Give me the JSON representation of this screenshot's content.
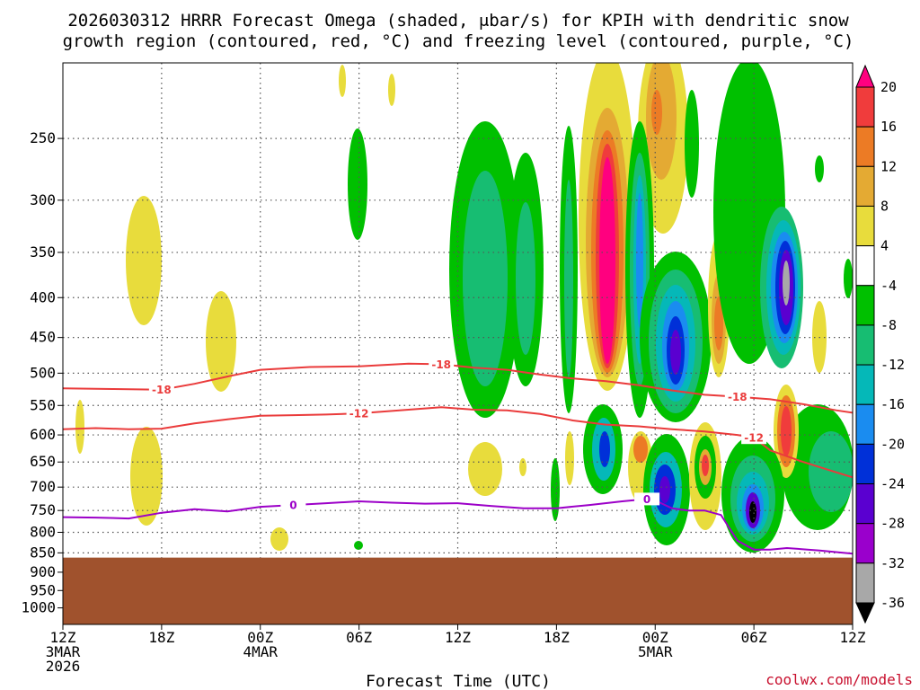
{
  "title_line1": "2026030312 HRRR Forecast Omega (shaded, μbar/s) for KPIH with dendritic snow",
  "title_line2": "growth region (contoured, red, °C) and freezing level (contoured, purple, °C)",
  "credit": "coolwx.com/models",
  "chart_data": {
    "type": "heatmap",
    "title": "2026030312 HRRR Forecast Omega (shaded, μbar/s) for KPIH with dendritic snow growth region (contoured, red, °C) and freezing level (contoured, purple, °C)",
    "xlabel": "Forecast Time (UTC)",
    "ylabel": "",
    "x_range_hours": [
      0,
      48
    ],
    "y_range_hPa": [
      200,
      1050
    ],
    "y_scale": "log-pressure",
    "grid": true,
    "x_ticks": [
      {
        "hour": 0,
        "lines": [
          "12Z",
          "3MAR",
          "2026"
        ]
      },
      {
        "hour": 6,
        "lines": [
          "18Z"
        ]
      },
      {
        "hour": 12,
        "lines": [
          "00Z",
          "4MAR"
        ]
      },
      {
        "hour": 18,
        "lines": [
          "06Z"
        ]
      },
      {
        "hour": 24,
        "lines": [
          "12Z"
        ]
      },
      {
        "hour": 30,
        "lines": [
          "18Z"
        ]
      },
      {
        "hour": 36,
        "lines": [
          "00Z",
          "5MAR"
        ]
      },
      {
        "hour": 42,
        "lines": [
          "06Z"
        ]
      },
      {
        "hour": 48,
        "lines": [
          "12Z"
        ]
      }
    ],
    "y_ticks": [
      250,
      300,
      350,
      400,
      450,
      500,
      550,
      600,
      650,
      700,
      750,
      800,
      850,
      900,
      950,
      1000
    ],
    "colorbar": {
      "labels": [
        "20",
        "16",
        "12",
        "8",
        "4",
        "-4",
        "-8",
        "-12",
        "-16",
        "-20",
        "-24",
        "-28",
        "-32",
        "-36"
      ],
      "colors": [
        "#ff007f",
        "#f03c3c",
        "#ec7b25",
        "#e4aa33",
        "#e8dc3c",
        "#ffffff",
        "#00c000",
        "#17bd72",
        "#05b8b8",
        "#1a8cf0",
        "#0030d8",
        "#5a00d0",
        "#9a00cc",
        "#a8a8a8",
        "#000000"
      ]
    },
    "terrain": {
      "color": "#a0522d",
      "surface_hPa": 862
    },
    "contours": [
      {
        "label": "-18",
        "color": "#ea3b3b",
        "points": [
          [
            0,
            523
          ],
          [
            3,
            524
          ],
          [
            6,
            525
          ],
          [
            8,
            516
          ],
          [
            10,
            505
          ],
          [
            12,
            495
          ],
          [
            15,
            491
          ],
          [
            18,
            490
          ],
          [
            21,
            486
          ],
          [
            23,
            487
          ],
          [
            25,
            492
          ],
          [
            27,
            495
          ],
          [
            29,
            502
          ],
          [
            31,
            508
          ],
          [
            33,
            512
          ],
          [
            35,
            518
          ],
          [
            37,
            526
          ],
          [
            39,
            533
          ],
          [
            41,
            536
          ],
          [
            43,
            540
          ],
          [
            45,
            548
          ],
          [
            47,
            558
          ],
          [
            48,
            562
          ]
        ]
      },
      {
        "label": "-12",
        "color": "#ea3b3b",
        "points": [
          [
            0,
            590
          ],
          [
            2,
            588
          ],
          [
            4,
            590
          ],
          [
            6,
            589
          ],
          [
            8,
            580
          ],
          [
            10,
            573
          ],
          [
            12,
            567
          ],
          [
            14,
            566
          ],
          [
            16,
            565
          ],
          [
            18,
            563
          ],
          [
            21,
            557
          ],
          [
            23,
            553
          ],
          [
            25,
            557
          ],
          [
            27,
            558
          ],
          [
            29,
            564
          ],
          [
            31,
            575
          ],
          [
            33,
            582
          ],
          [
            35,
            585
          ],
          [
            37,
            590
          ],
          [
            39,
            594
          ],
          [
            41,
            600
          ],
          [
            42,
            605
          ],
          [
            43,
            628
          ],
          [
            45,
            650
          ],
          [
            47,
            670
          ],
          [
            48,
            680
          ]
        ]
      },
      {
        "label": "0",
        "color": "#9c00c8",
        "points": [
          [
            0,
            765
          ],
          [
            2,
            766
          ],
          [
            4,
            768
          ],
          [
            6,
            755
          ],
          [
            8,
            747
          ],
          [
            10,
            752
          ],
          [
            12,
            742
          ],
          [
            14,
            738
          ],
          [
            16,
            734
          ],
          [
            18,
            730
          ],
          [
            20,
            733
          ],
          [
            22,
            735
          ],
          [
            24,
            734
          ],
          [
            26,
            740
          ],
          [
            28,
            745
          ],
          [
            30,
            745
          ],
          [
            32,
            738
          ],
          [
            34,
            730
          ],
          [
            35.5,
            725
          ],
          [
            36,
            728
          ],
          [
            37,
            745
          ],
          [
            38,
            750
          ],
          [
            39,
            750
          ],
          [
            40,
            760
          ],
          [
            41,
            820
          ],
          [
            42,
            842
          ],
          [
            43,
            842
          ],
          [
            44,
            838
          ],
          [
            46,
            844
          ],
          [
            48,
            852
          ]
        ]
      }
    ]
  }
}
